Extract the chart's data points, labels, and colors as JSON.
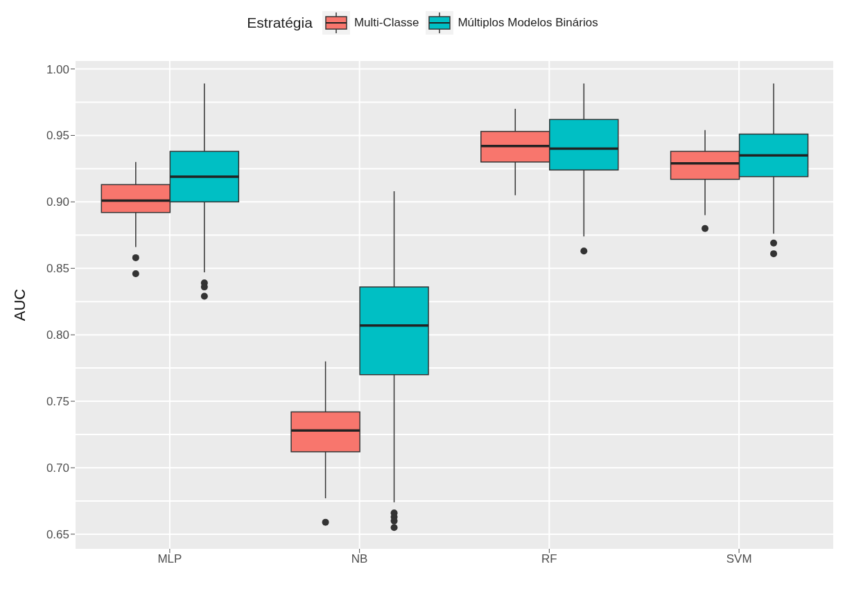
{
  "chart_data": {
    "type": "box",
    "ylabel": "AUC",
    "legend_title": "Estratégia",
    "legend": "top",
    "grid": true,
    "categories": [
      "MLP",
      "NB",
      "RF",
      "SVM"
    ],
    "ylim": [
      0.639,
      1.006
    ],
    "yticks": [
      {
        "value": 0.65,
        "label": "0.65"
      },
      {
        "value": 0.7,
        "label": "0.70"
      },
      {
        "value": 0.75,
        "label": "0.75"
      },
      {
        "value": 0.8,
        "label": "0.80"
      },
      {
        "value": 0.85,
        "label": "0.85"
      },
      {
        "value": 0.9,
        "label": "0.90"
      },
      {
        "value": 0.95,
        "label": "0.95"
      },
      {
        "value": 1.0,
        "label": "1.00"
      }
    ],
    "series": [
      {
        "name": "Multi-Classe",
        "color": "#f8766d",
        "boxes": [
          {
            "low": 0.866,
            "q1": 0.892,
            "median": 0.901,
            "q3": 0.913,
            "high": 0.93,
            "outliers": [
              0.858,
              0.846
            ]
          },
          {
            "low": 0.677,
            "q1": 0.712,
            "median": 0.728,
            "q3": 0.742,
            "high": 0.78,
            "outliers": [
              0.659
            ]
          },
          {
            "low": 0.905,
            "q1": 0.93,
            "median": 0.942,
            "q3": 0.953,
            "high": 0.97
          },
          {
            "low": 0.89,
            "q1": 0.917,
            "median": 0.929,
            "q3": 0.938,
            "high": 0.954,
            "outliers": [
              0.88
            ]
          }
        ]
      },
      {
        "name": "Múltiplos Modelos Binários",
        "color": "#00bfc4",
        "boxes": [
          {
            "low": 0.847,
            "q1": 0.9,
            "median": 0.919,
            "q3": 0.938,
            "high": 0.989,
            "outliers": [
              0.839,
              0.836,
              0.829
            ]
          },
          {
            "low": 0.674,
            "q1": 0.77,
            "median": 0.807,
            "q3": 0.836,
            "high": 0.908,
            "outliers": [
              0.666,
              0.663,
              0.66,
              0.655
            ]
          },
          {
            "low": 0.874,
            "q1": 0.924,
            "median": 0.94,
            "q3": 0.962,
            "high": 0.989,
            "outliers": [
              0.863
            ]
          },
          {
            "low": 0.876,
            "q1": 0.919,
            "median": 0.935,
            "q3": 0.951,
            "high": 0.989,
            "outliers": [
              0.869,
              0.861
            ]
          }
        ]
      }
    ]
  }
}
